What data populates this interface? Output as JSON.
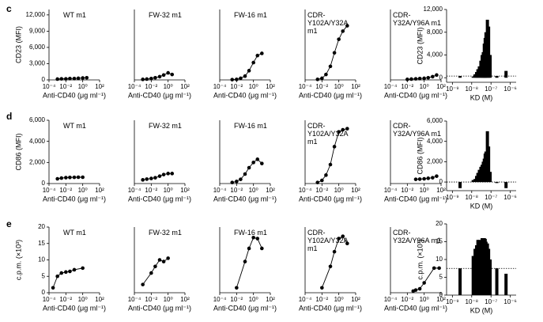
{
  "panel_labels": [
    "c",
    "d",
    "e"
  ],
  "chart_data": [
    {
      "type": "line",
      "title": "WT m1",
      "color": "#000000",
      "log_x": true,
      "xlim": [
        0.0001,
        100
      ],
      "xticks": [
        {
          "value": 0.0001,
          "label": "10⁻⁴"
        },
        {
          "value": 0.01,
          "label": "10⁻²"
        },
        {
          "value": 1,
          "label": "10⁰"
        },
        {
          "value": 100,
          "label": "10²"
        }
      ],
      "x_label": "Anti-CD40 (μg ml⁻¹)",
      "y_label": "CD23 (MFI)",
      "ylim": [
        0,
        13000
      ],
      "yticks": [
        0,
        {
          "value": 3000,
          "label": "3,000"
        },
        {
          "value": 6000,
          "label": "6,000"
        },
        {
          "value": 9000,
          "label": "9,000"
        },
        {
          "value": 12000,
          "label": "12,000"
        }
      ],
      "x": [
        0.001,
        0.003,
        0.01,
        0.03,
        0.1,
        0.3,
        1,
        3
      ],
      "values": [
        150,
        200,
        200,
        250,
        250,
        300,
        350,
        400
      ]
    },
    {
      "type": "line",
      "title": "FW-32 m1",
      "color": "#000000",
      "log_x": true,
      "xlim": [
        0.0001,
        100
      ],
      "xticks": [
        {
          "value": 0.0001,
          "label": "10⁻⁴"
        },
        {
          "value": 0.01,
          "label": "10⁻²"
        },
        {
          "value": 1,
          "label": "10⁰"
        },
        {
          "value": 100,
          "label": "10²"
        }
      ],
      "x_label": "Anti-CD40 (μg ml⁻¹)",
      "ylim": [
        0,
        13000
      ],
      "x": [
        0.001,
        0.003,
        0.01,
        0.03,
        0.1,
        0.3,
        1,
        3
      ],
      "values": [
        100,
        150,
        250,
        400,
        600,
        900,
        1300,
        1000
      ]
    },
    {
      "type": "line",
      "title": "FW-16 m1",
      "color": "#000000",
      "log_x": true,
      "xlim": [
        0.0001,
        100
      ],
      "xticks": [
        {
          "value": 0.0001,
          "label": "10⁻⁴"
        },
        {
          "value": 0.01,
          "label": "10⁻²"
        },
        {
          "value": 1,
          "label": "10⁰"
        },
        {
          "value": 100,
          "label": "10²"
        }
      ],
      "x_label": "Anti-CD40 (μg ml⁻¹)",
      "ylim": [
        0,
        13000
      ],
      "x": [
        0.003,
        0.01,
        0.03,
        0.1,
        0.3,
        1,
        3,
        10
      ],
      "values": [
        50,
        100,
        300,
        700,
        1700,
        3200,
        4500,
        4900
      ]
    },
    {
      "type": "line",
      "title": "CDR-Y102A/Y32A m1",
      "color": "#000000",
      "log_x": true,
      "xlim": [
        0.0001,
        100
      ],
      "xticks": [
        {
          "value": 0.0001,
          "label": "10⁻⁴"
        },
        {
          "value": 0.01,
          "label": "10⁻²"
        },
        {
          "value": 1,
          "label": "10⁰"
        },
        {
          "value": 100,
          "label": "10²"
        }
      ],
      "x_label": "Anti-CD40 (μg ml⁻¹)",
      "ylim": [
        0,
        13000
      ],
      "x": [
        0.003,
        0.01,
        0.03,
        0.1,
        0.3,
        1,
        3,
        10
      ],
      "values": [
        100,
        300,
        1000,
        2500,
        5000,
        7500,
        9000,
        10000
      ]
    },
    {
      "type": "line",
      "title": "CDR-Y32A/Y96A m1",
      "color": "#000000",
      "log_x": true,
      "xlim": [
        0.0001,
        100
      ],
      "xticks": [
        {
          "value": 0.0001,
          "label": "10⁻⁴"
        },
        {
          "value": 0.01,
          "label": "10⁻²"
        },
        {
          "value": 1,
          "label": "10⁰"
        },
        {
          "value": 100,
          "label": "10²"
        }
      ],
      "x_label": "Anti-CD40 (μg ml⁻¹)",
      "ylim": [
        0,
        13000
      ],
      "x": [
        0.01,
        0.03,
        0.1,
        0.3,
        1,
        3,
        10,
        30
      ],
      "values": [
        100,
        150,
        200,
        250,
        300,
        400,
        600,
        900
      ]
    },
    {
      "type": "bar",
      "color": "#000000",
      "log_x": true,
      "xlim": [
        5e-10,
        2e-06
      ],
      "xticks": [
        {
          "value": 1e-09,
          "label": "10⁻⁹"
        },
        {
          "value": 1e-08,
          "label": "10⁻⁸"
        },
        {
          "value": 1e-07,
          "label": "10⁻⁷"
        },
        {
          "value": 1e-06,
          "label": "10⁻⁶"
        }
      ],
      "x_label": "KD (M)",
      "y_label": "CD23 (MFI)",
      "ylim": [
        -800,
        12000
      ],
      "yticks": [
        0,
        {
          "value": 4000,
          "label": "4,000"
        },
        {
          "value": 8000,
          "label": "8,000"
        },
        {
          "value": 12000,
          "label": "12,000"
        }
      ],
      "refline": 300,
      "x": [
        2.5e-09,
        1.2e-08,
        1.5e-08,
        1.8e-08,
        2.1e-08,
        2.5e-08,
        3e-08,
        3.5e-08,
        4e-08,
        4.5e-08,
        5e-08,
        5.5e-08,
        6.5e-08,
        7.5e-08,
        9e-08,
        2e-07,
        6e-07
      ],
      "values": [
        300,
        200,
        600,
        1000,
        1500,
        2000,
        3000,
        4000,
        4500,
        6000,
        7000,
        8000,
        10200,
        9000,
        4000,
        300,
        1200
      ]
    },
    {
      "type": "line",
      "title": "WT m1",
      "color": "#000000",
      "log_x": true,
      "xlim": [
        0.0001,
        100
      ],
      "xticks": [
        {
          "value": 0.0001,
          "label": "10⁻⁴"
        },
        {
          "value": 0.01,
          "label": "10⁻²"
        },
        {
          "value": 1,
          "label": "10⁰"
        },
        {
          "value": 100,
          "label": "10²"
        }
      ],
      "x_label": "Anti-CD40 (μg ml⁻¹)",
      "y_label": "CD86 (MFI)",
      "ylim": [
        0,
        6000
      ],
      "yticks": [
        0,
        {
          "value": 2000,
          "label": "2,000"
        },
        {
          "value": 4000,
          "label": "4,000"
        },
        {
          "value": 6000,
          "label": "6,000"
        }
      ],
      "x": [
        0.001,
        0.003,
        0.01,
        0.03,
        0.1,
        0.3,
        1
      ],
      "values": [
        450,
        520,
        560,
        580,
        590,
        600,
        600
      ]
    },
    {
      "type": "line",
      "title": "FW-32 m1",
      "color": "#000000",
      "log_x": true,
      "xlim": [
        0.0001,
        100
      ],
      "xticks": [
        {
          "value": 0.0001,
          "label": "10⁻⁴"
        },
        {
          "value": 0.01,
          "label": "10⁻²"
        },
        {
          "value": 1,
          "label": "10⁰"
        },
        {
          "value": 100,
          "label": "10²"
        }
      ],
      "x_label": "Anti-CD40 (μg ml⁻¹)",
      "ylim": [
        0,
        6000
      ],
      "x": [
        0.001,
        0.003,
        0.01,
        0.03,
        0.1,
        0.3,
        1,
        3
      ],
      "values": [
        350,
        420,
        480,
        550,
        700,
        850,
        950,
        950
      ]
    },
    {
      "type": "line",
      "title": "FW-16 m1",
      "color": "#000000",
      "log_x": true,
      "xlim": [
        0.0001,
        100
      ],
      "xticks": [
        {
          "value": 0.0001,
          "label": "10⁻⁴"
        },
        {
          "value": 0.01,
          "label": "10⁻²"
        },
        {
          "value": 1,
          "label": "10⁰"
        },
        {
          "value": 100,
          "label": "10²"
        }
      ],
      "x_label": "Anti-CD40 (μg ml⁻¹)",
      "ylim": [
        0,
        6000
      ],
      "x": [
        0.003,
        0.01,
        0.03,
        0.1,
        0.3,
        1,
        3,
        10
      ],
      "values": [
        100,
        200,
        400,
        900,
        1500,
        2000,
        2300,
        1900
      ]
    },
    {
      "type": "line",
      "title": "CDR-Y102A/Y32A m1",
      "color": "#000000",
      "log_x": true,
      "xlim": [
        0.0001,
        100
      ],
      "xticks": [
        {
          "value": 0.0001,
          "label": "10⁻⁴"
        },
        {
          "value": 0.01,
          "label": "10⁻²"
        },
        {
          "value": 1,
          "label": "10⁰"
        },
        {
          "value": 100,
          "label": "10²"
        }
      ],
      "x_label": "Anti-CD40 (μg ml⁻¹)",
      "ylim": [
        0,
        6000
      ],
      "x": [
        0.003,
        0.01,
        0.03,
        0.1,
        0.3,
        1,
        3,
        10
      ],
      "values": [
        100,
        300,
        800,
        1800,
        3500,
        4900,
        5100,
        5200
      ]
    },
    {
      "type": "line",
      "title": "CDR-Y32A/Y96A m1",
      "color": "#000000",
      "log_x": true,
      "xlim": [
        0.0001,
        100
      ],
      "xticks": [
        {
          "value": 0.0001,
          "label": "10⁻⁴"
        },
        {
          "value": 0.01,
          "label": "10⁻²"
        },
        {
          "value": 1,
          "label": "10⁰"
        },
        {
          "value": 100,
          "label": "10²"
        }
      ],
      "x_label": "Anti-CD40 (μg ml⁻¹)",
      "ylim": [
        0,
        6000
      ],
      "x": [
        0.1,
        0.3,
        1,
        3,
        10,
        30
      ],
      "values": [
        400,
        420,
        450,
        500,
        550,
        700
      ]
    },
    {
      "type": "bar",
      "color": "#000000",
      "log_x": true,
      "xlim": [
        5e-10,
        2e-06
      ],
      "xticks": [
        {
          "value": 1e-09,
          "label": "10⁻⁹"
        },
        {
          "value": 1e-08,
          "label": "10⁻⁸"
        },
        {
          "value": 1e-07,
          "label": "10⁻⁷"
        },
        {
          "value": 1e-06,
          "label": "10⁻⁶"
        }
      ],
      "x_label": "KD (M)",
      "y_label": "CD86 (MFI)",
      "ylim": [
        -850,
        6000
      ],
      "yticks": [
        0,
        {
          "value": 2000,
          "label": "2,000"
        },
        {
          "value": 4000,
          "label": "4,000"
        },
        {
          "value": 6000,
          "label": "6,000"
        }
      ],
      "refline": 0,
      "x": [
        2.5e-09,
        1.2e-08,
        1.5e-08,
        1.8e-08,
        2.1e-08,
        2.5e-08,
        3e-08,
        3.5e-08,
        4e-08,
        4.5e-08,
        5e-08,
        5.5e-08,
        6.5e-08,
        7.5e-08,
        9e-08,
        2e-07,
        6e-07
      ],
      "values": [
        -600,
        200,
        300,
        600,
        900,
        1200,
        1500,
        1700,
        2000,
        2300,
        2800,
        3000,
        5000,
        3500,
        1000,
        -100,
        -600
      ]
    },
    {
      "type": "line",
      "title": "WT m1",
      "color": "#000000",
      "log_x": true,
      "xlim": [
        0.0001,
        100
      ],
      "xticks": [
        {
          "value": 0.0001,
          "label": "10⁻⁴"
        },
        {
          "value": 0.01,
          "label": "10⁻²"
        },
        {
          "value": 1,
          "label": "10⁰"
        },
        {
          "value": 100,
          "label": "10²"
        }
      ],
      "x_label": "Anti-CD40 (μg ml⁻¹)",
      "y_label": "c.p.m. (×10³)",
      "ylim": [
        0,
        20
      ],
      "yticks": [
        0,
        5,
        10,
        15,
        20
      ],
      "x": [
        0.0003,
        0.001,
        0.003,
        0.01,
        0.03,
        0.1,
        1
      ],
      "values": [
        1.5,
        5,
        6,
        6.3,
        6.5,
        7,
        7.5
      ]
    },
    {
      "type": "line",
      "title": "FW-32 m1",
      "color": "#000000",
      "log_x": true,
      "xlim": [
        0.0001,
        100
      ],
      "xticks": [
        {
          "value": 0.0001,
          "label": "10⁻⁴"
        },
        {
          "value": 0.01,
          "label": "10⁻²"
        },
        {
          "value": 1,
          "label": "10⁰"
        },
        {
          "value": 100,
          "label": "10²"
        }
      ],
      "x_label": "Anti-CD40 (μg ml⁻¹)",
      "ylim": [
        0,
        20
      ],
      "x": [
        0.001,
        0.01,
        0.03,
        0.1,
        0.3,
        1
      ],
      "values": [
        2.5,
        6,
        8,
        10,
        9.5,
        10.5
      ]
    },
    {
      "type": "line",
      "title": "FW-16 m1",
      "color": "#000000",
      "log_x": true,
      "xlim": [
        0.0001,
        100
      ],
      "xticks": [
        {
          "value": 0.0001,
          "label": "10⁻⁴"
        },
        {
          "value": 0.01,
          "label": "10⁻²"
        },
        {
          "value": 1,
          "label": "10⁰"
        },
        {
          "value": 100,
          "label": "10²"
        }
      ],
      "x_label": "Anti-CD40 (μg ml⁻¹)",
      "ylim": [
        0,
        20
      ],
      "x": [
        0.01,
        0.1,
        0.3,
        1,
        3,
        10
      ],
      "values": [
        1.5,
        9.5,
        13.5,
        16.8,
        16.5,
        13.5
      ]
    },
    {
      "type": "line",
      "title": "CDR-Y102A/Y32A m1",
      "color": "#000000",
      "log_x": true,
      "xlim": [
        0.0001,
        100
      ],
      "xticks": [
        {
          "value": 0.0001,
          "label": "10⁻⁴"
        },
        {
          "value": 0.01,
          "label": "10⁻²"
        },
        {
          "value": 1,
          "label": "10⁰"
        },
        {
          "value": 100,
          "label": "10²"
        }
      ],
      "x_label": "Anti-CD40 (μg ml⁻¹)",
      "ylim": [
        0,
        20
      ],
      "x": [
        0.01,
        0.1,
        0.3,
        1,
        3,
        10
      ],
      "values": [
        1.5,
        8,
        12.5,
        16.5,
        17.2,
        15
      ]
    },
    {
      "type": "line",
      "title": "CDR-Y32A/Y96A m1",
      "color": "#000000",
      "log_x": true,
      "xlim": [
        0.0001,
        100
      ],
      "xticks": [
        {
          "value": 0.0001,
          "label": "10⁻⁴"
        },
        {
          "value": 0.01,
          "label": "10⁻²"
        },
        {
          "value": 1,
          "label": "10⁰"
        },
        {
          "value": 100,
          "label": "10²"
        }
      ],
      "x_label": "Anti-CD40 (μg ml⁻¹)",
      "ylim": [
        0,
        20
      ],
      "x": [
        0.05,
        0.1,
        0.3,
        1,
        15,
        60
      ],
      "values": [
        0.5,
        0.8,
        1.2,
        3,
        7.5,
        7.5
      ]
    },
    {
      "type": "bar",
      "color": "#000000",
      "log_x": true,
      "xlim": [
        5e-10,
        2e-06
      ],
      "xticks": [
        {
          "value": 1e-09,
          "label": "10⁻⁹"
        },
        {
          "value": 1e-08,
          "label": "10⁻⁸"
        },
        {
          "value": 1e-07,
          "label": "10⁻⁷"
        },
        {
          "value": 1e-06,
          "label": "10⁻⁶"
        }
      ],
      "x_label": "KD (M)",
      "y_label": "c.p.m. (×10³)",
      "ylim": [
        0,
        20
      ],
      "yticks": [
        0,
        5,
        10,
        15,
        20
      ],
      "refline": 7.5,
      "x": [
        2.5e-09,
        1.2e-08,
        1.5e-08,
        1.8e-08,
        2.1e-08,
        2.5e-08,
        3e-08,
        3.5e-08,
        4e-08,
        4.5e-08,
        5e-08,
        5.5e-08,
        6.5e-08,
        7.5e-08,
        9e-08,
        2e-07,
        6e-07
      ],
      "values": [
        7.5,
        11,
        13,
        14,
        15.5,
        15.5,
        15,
        16,
        15.5,
        16,
        15.8,
        15,
        14.5,
        13,
        10,
        7.5,
        6
      ]
    }
  ]
}
